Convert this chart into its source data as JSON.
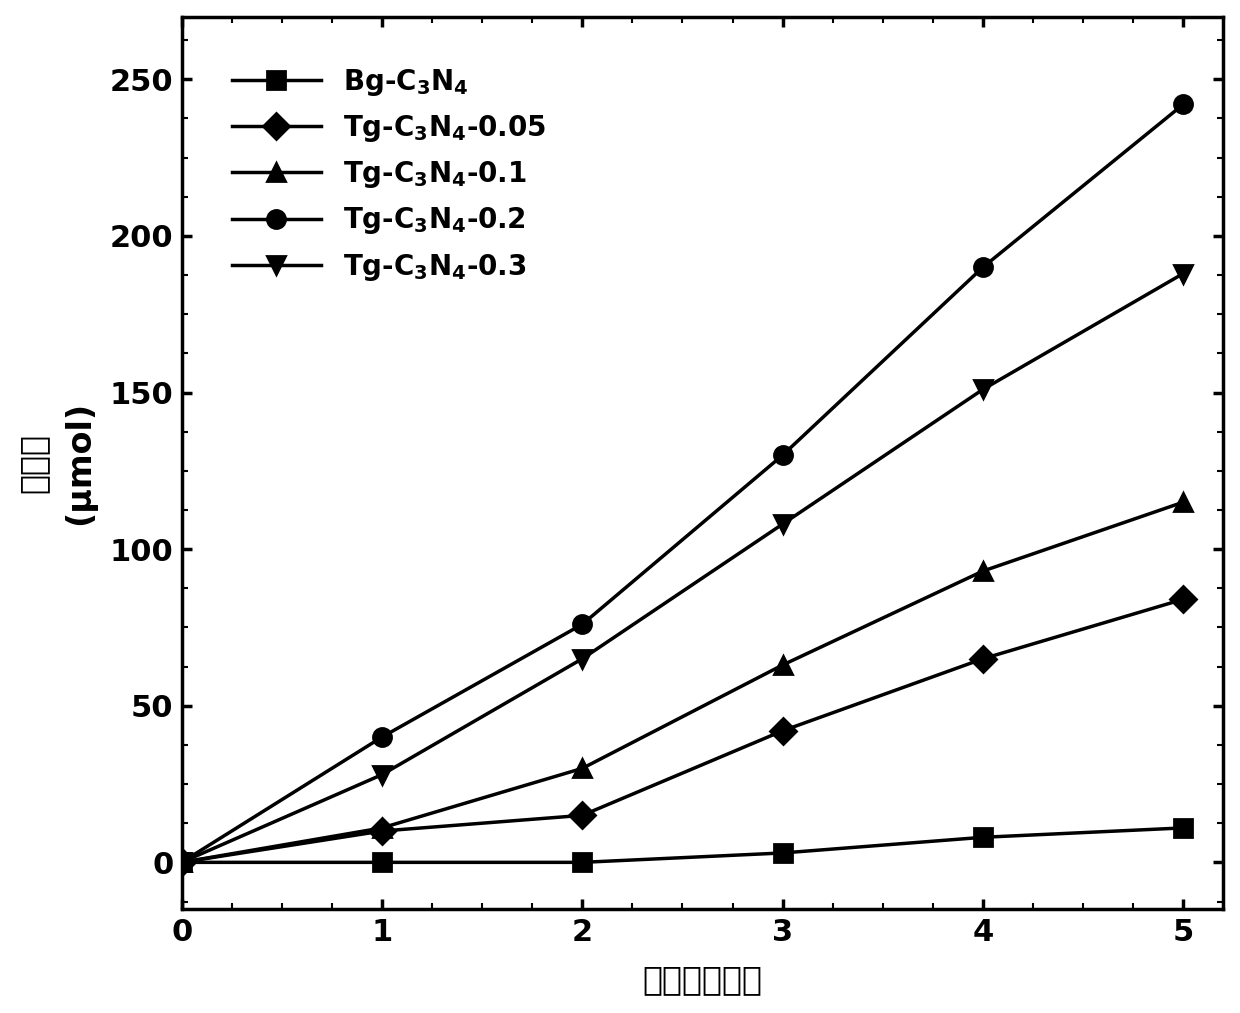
{
  "x": [
    0,
    1,
    2,
    3,
    4,
    5
  ],
  "series": [
    {
      "label": "Bg-C$_3$N$_4$",
      "values": [
        0,
        0,
        0,
        3,
        8,
        11
      ],
      "marker": "s",
      "color": "#000000"
    },
    {
      "label": "Tg-C$_3$N$_4$-0.05",
      "values": [
        0,
        10,
        15,
        42,
        65,
        84
      ],
      "marker": "D",
      "color": "#000000"
    },
    {
      "label": "Tg-C$_3$N$_4$-0.1",
      "values": [
        0,
        11,
        30,
        63,
        93,
        115
      ],
      "marker": "^",
      "color": "#000000"
    },
    {
      "label": "Tg-C$_3$N$_4$-0.2",
      "values": [
        0,
        40,
        76,
        130,
        190,
        242
      ],
      "marker": "o",
      "color": "#000000"
    },
    {
      "label": "Tg-C$_3$N$_4$-0.3",
      "values": [
        0,
        28,
        65,
        108,
        151,
        188
      ],
      "marker": "v",
      "color": "#000000"
    }
  ],
  "xlabel": "时间（小时）",
  "ylabel_chinese": "产氢量",
  "ylabel_unit": "(μmol)",
  "xlim": [
    0,
    5.2
  ],
  "ylim": [
    -15,
    270
  ],
  "xticks": [
    0,
    1,
    2,
    3,
    4,
    5
  ],
  "yticks": [
    0,
    50,
    100,
    150,
    200,
    250
  ],
  "linewidth": 2.5,
  "markersize": 13,
  "background_color": "#ffffff",
  "legend_fontsize": 20,
  "axis_fontsize": 24,
  "tick_fontsize": 22,
  "minor_tick_count": 4
}
